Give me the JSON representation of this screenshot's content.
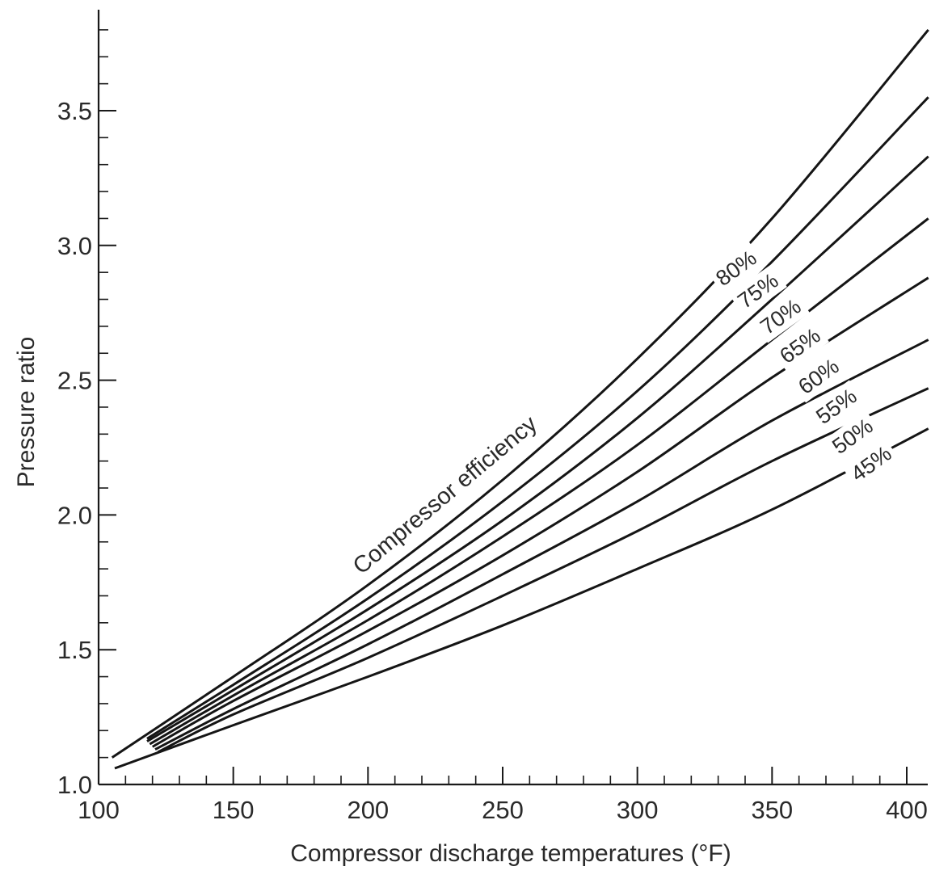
{
  "chart_data": {
    "type": "line",
    "xlabel": "Compressor discharge temperatures (°F)",
    "ylabel": "Pressure ratio",
    "xlim": [
      100,
      408
    ],
    "ylim": [
      1.0,
      3.85
    ],
    "xticks": [
      100,
      150,
      200,
      250,
      300,
      350,
      400
    ],
    "yticks": [
      1.0,
      1.5,
      2.0,
      2.5,
      3.0,
      3.5
    ],
    "xtick_labels": [
      "100",
      "150",
      "200",
      "250",
      "300",
      "350",
      "400"
    ],
    "ytick_labels": [
      "1.0",
      "1.5",
      "2.0",
      "2.5",
      "3.0",
      "3.5"
    ],
    "grid": false,
    "legend": "none",
    "annotation": "Compressor efficiency",
    "series": [
      {
        "name": "80%",
        "x": [
          105,
          150,
          200,
          250,
          300,
          350,
          408
        ],
        "y": [
          1.1,
          1.4,
          1.74,
          2.13,
          2.58,
          3.1,
          3.8
        ]
      },
      {
        "name": "75%",
        "x": [
          118,
          150,
          200,
          250,
          300,
          350,
          408
        ],
        "y": [
          1.17,
          1.37,
          1.69,
          2.05,
          2.46,
          2.94,
          3.55
        ]
      },
      {
        "name": "70%",
        "x": [
          118,
          150,
          200,
          250,
          300,
          350,
          408
        ],
        "y": [
          1.16,
          1.35,
          1.65,
          1.98,
          2.36,
          2.8,
          3.33
        ]
      },
      {
        "name": "65%",
        "x": [
          119,
          150,
          200,
          250,
          300,
          350,
          408
        ],
        "y": [
          1.15,
          1.33,
          1.61,
          1.92,
          2.26,
          2.65,
          3.1
        ]
      },
      {
        "name": "60%",
        "x": [
          120,
          150,
          200,
          250,
          300,
          350,
          408
        ],
        "y": [
          1.14,
          1.31,
          1.57,
          1.85,
          2.16,
          2.51,
          2.88
        ]
      },
      {
        "name": "55%",
        "x": [
          121,
          150,
          200,
          250,
          300,
          350,
          408
        ],
        "y": [
          1.13,
          1.28,
          1.52,
          1.78,
          2.05,
          2.35,
          2.65
        ]
      },
      {
        "name": "50%",
        "x": [
          122,
          150,
          200,
          250,
          300,
          350,
          408
        ],
        "y": [
          1.12,
          1.26,
          1.47,
          1.7,
          1.94,
          2.2,
          2.47
        ]
      },
      {
        "name": "45%",
        "x": [
          106,
          150,
          200,
          250,
          300,
          350,
          408
        ],
        "y": [
          1.06,
          1.22,
          1.4,
          1.59,
          1.8,
          2.02,
          2.32
        ]
      }
    ]
  }
}
